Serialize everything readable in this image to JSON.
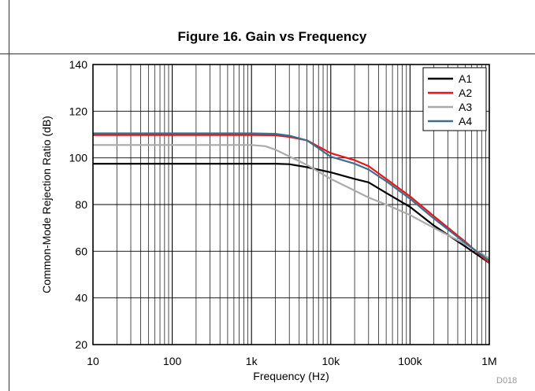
{
  "figure": {
    "title": "Figure 16. Gain vs Frequency",
    "code": "D018"
  },
  "chart_data": {
    "type": "line",
    "title": "Figure 16. Gain vs Frequency",
    "xlabel": "Frequency (Hz)",
    "ylabel": "Common-Mode Rejection Ratio (dB)",
    "xscale": "log",
    "xlim": [
      10,
      1000000
    ],
    "ylim": [
      20,
      140
    ],
    "xticks": [
      {
        "value": 10,
        "label": "10"
      },
      {
        "value": 100,
        "label": "100"
      },
      {
        "value": 1000,
        "label": "1k"
      },
      {
        "value": 10000,
        "label": "10k"
      },
      {
        "value": 100000,
        "label": "100k"
      },
      {
        "value": 1000000,
        "label": "1M"
      }
    ],
    "yticks": [
      20,
      40,
      60,
      80,
      100,
      120,
      140
    ],
    "grid": true,
    "legend_position": "top-right",
    "series": [
      {
        "name": "A1",
        "color": "#000000",
        "points": [
          [
            10,
            97.5
          ],
          [
            1000,
            97.5
          ],
          [
            2000,
            97.5
          ],
          [
            3000,
            97.3
          ],
          [
            5000,
            96
          ],
          [
            10000,
            93.8
          ],
          [
            20000,
            91
          ],
          [
            30000,
            89.5
          ],
          [
            50000,
            85
          ],
          [
            100000,
            79
          ],
          [
            200000,
            71
          ],
          [
            500000,
            62
          ],
          [
            1000000,
            55
          ]
        ]
      },
      {
        "name": "A2",
        "color": "#e8141c",
        "points": [
          [
            10,
            109.8
          ],
          [
            1000,
            109.8
          ],
          [
            2000,
            109.7
          ],
          [
            3000,
            109
          ],
          [
            5000,
            107.5
          ],
          [
            10000,
            102
          ],
          [
            20000,
            99
          ],
          [
            30000,
            96.5
          ],
          [
            50000,
            91
          ],
          [
            100000,
            83.5
          ],
          [
            200000,
            75
          ],
          [
            500000,
            64
          ],
          [
            1000000,
            55
          ]
        ]
      },
      {
        "name": "A3",
        "color": "#aaaaaa",
        "points": [
          [
            10,
            105.5
          ],
          [
            1000,
            105.5
          ],
          [
            1500,
            105
          ],
          [
            2000,
            103.5
          ],
          [
            5000,
            97
          ],
          [
            10000,
            91
          ],
          [
            20000,
            86
          ],
          [
            30000,
            83
          ],
          [
            50000,
            80
          ],
          [
            100000,
            75.5
          ],
          [
            200000,
            70
          ],
          [
            500000,
            63
          ],
          [
            1000000,
            57
          ]
        ]
      },
      {
        "name": "A4",
        "color": "#3d6e8e",
        "points": [
          [
            10,
            110.5
          ],
          [
            1000,
            110.5
          ],
          [
            2000,
            110.3
          ],
          [
            3000,
            109.5
          ],
          [
            5000,
            107.5
          ],
          [
            10000,
            100.5
          ],
          [
            20000,
            97.5
          ],
          [
            30000,
            95
          ],
          [
            50000,
            90
          ],
          [
            100000,
            82.5
          ],
          [
            200000,
            74
          ],
          [
            500000,
            63.5
          ],
          [
            1000000,
            56
          ]
        ]
      }
    ]
  }
}
